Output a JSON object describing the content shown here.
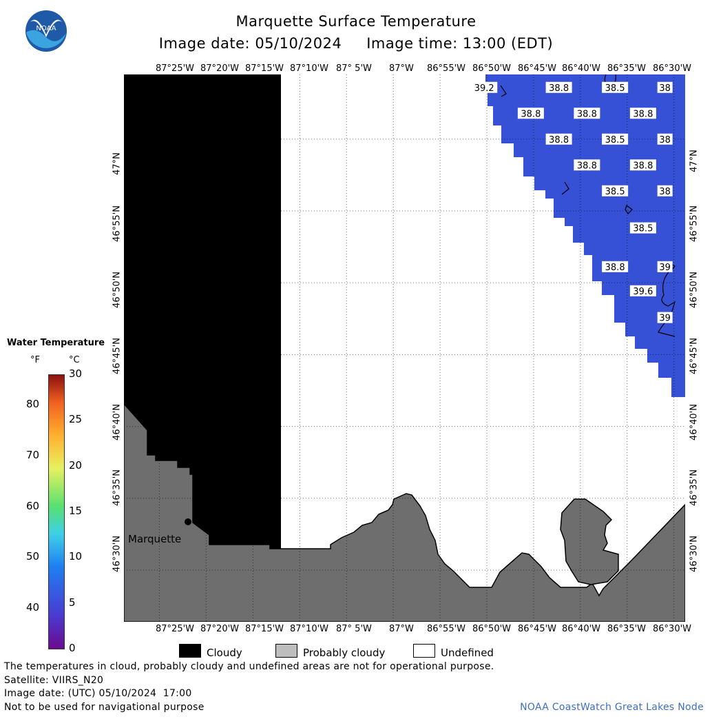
{
  "header": {
    "title": "Marquette Surface Temperature",
    "subtitle": "Image date: 05/10/2024     Image time: 13:00 (EDT)",
    "logo_text": "NOAA"
  },
  "map": {
    "lon_labels": [
      "87°25'W",
      "87°20'W",
      "87°15'W",
      "87°10'W",
      "87° 5'W",
      "87°W",
      "86°55'W",
      "86°50'W",
      "86°45'W",
      "86°40'W",
      "86°35'W",
      "86°30'W"
    ],
    "lat_labels": [
      "47°N",
      "46°55'N",
      "46°50'N",
      "46°45'N",
      "46°40'N",
      "46°35'N",
      "46°30'N"
    ],
    "city": "Marquette",
    "temp_labels": [
      {
        "text": "39.2",
        "lon": -86.838,
        "lat": 47.06
      },
      {
        "text": "38.8",
        "lon": -86.705,
        "lat": 47.06
      },
      {
        "text": "38.5",
        "lon": -86.605,
        "lat": 47.06
      },
      {
        "text": "38",
        "lon": -86.516,
        "lat": 47.06
      },
      {
        "text": "38.8",
        "lon": -86.755,
        "lat": 47.03
      },
      {
        "text": "38.8",
        "lon": -86.655,
        "lat": 47.03
      },
      {
        "text": "38.8",
        "lon": -86.555,
        "lat": 47.03
      },
      {
        "text": "38.8",
        "lon": -86.705,
        "lat": 47.0
      },
      {
        "text": "38.5",
        "lon": -86.605,
        "lat": 47.0
      },
      {
        "text": "38",
        "lon": -86.516,
        "lat": 47.0
      },
      {
        "text": "38.8",
        "lon": -86.655,
        "lat": 46.97
      },
      {
        "text": "38.8",
        "lon": -86.555,
        "lat": 46.97
      },
      {
        "text": "38.5",
        "lon": -86.605,
        "lat": 46.94
      },
      {
        "text": "38",
        "lon": -86.516,
        "lat": 46.94
      },
      {
        "text": "38.5",
        "lon": -86.555,
        "lat": 46.897
      },
      {
        "text": "38.8",
        "lon": -86.605,
        "lat": 46.852
      },
      {
        "text": "39",
        "lon": -86.516,
        "lat": 46.852
      },
      {
        "text": "39.6",
        "lon": -86.555,
        "lat": 46.824
      },
      {
        "text": "39",
        "lon": -86.516,
        "lat": 46.793
      }
    ]
  },
  "legend": {
    "title": "Water Temperature",
    "unit_f": "°F",
    "unit_c": "°C",
    "f_ticks": [
      40,
      50,
      60,
      70,
      80
    ],
    "c_ticks": [
      0,
      5,
      10,
      15,
      20,
      25,
      30
    ],
    "keys": [
      {
        "label": "Cloudy",
        "color": "#000000"
      },
      {
        "label": "Probably cloudy",
        "color": "#bdbdbd"
      },
      {
        "label": "Undefined",
        "color": "#ffffff"
      }
    ]
  },
  "footer": {
    "line1": "The temperatures in cloud, probably cloudy and undefined areas are not for operational purpose.",
    "line2": "Satellite: VIIRS_N20",
    "line3": "Image date: (UTC) 05/10/2024  17:00",
    "line4": "Not to be used for navigational purpose",
    "credit": "NOAA CoastWatch Great Lakes Node"
  },
  "colors": {
    "cloud": "#000000",
    "land": "#6e6e6e",
    "water": "#3650d6",
    "credit": "#3c6fbf"
  }
}
